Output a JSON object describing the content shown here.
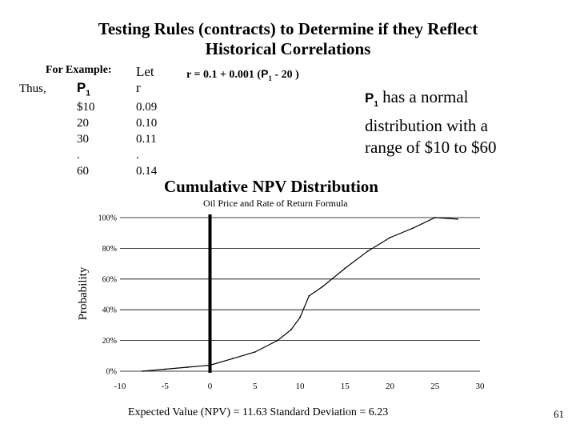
{
  "slide": {
    "title_line1": "Testing Rules (contracts) to Determine if they Reflect",
    "title_line2": "Historical Correlations",
    "for_example": "For Example:",
    "thus": "Thus,",
    "p1_symbol": "P",
    "p1_subscript": "1",
    "p1_values": [
      "$10",
      "20",
      "30",
      ".",
      "60"
    ],
    "let_label": "Let",
    "r_label": "r",
    "r_values": [
      "0.09",
      "0.10",
      "0.11",
      ".",
      "0.14"
    ],
    "formula_prefix": "r = 0.1 + 0.001 (",
    "formula_suffix": " - 20 )",
    "note_line1_suffix": " has a normal",
    "note_line2": "distribution with a",
    "note_line3": "range of $10 to $60",
    "page_number": "61"
  },
  "chart_data": {
    "type": "line",
    "title": "Cumulative NPV Distribution",
    "subtitle": "Oil Price and Rate of Return Formula",
    "ylabel": "Probability",
    "x_ticks": [
      "-10",
      "-5",
      "0",
      "5",
      "10",
      "15",
      "20",
      "25",
      "30"
    ],
    "y_ticks": [
      "0%",
      "20%",
      "40%",
      "60%",
      "80%",
      "100%"
    ],
    "xlim": [
      -10,
      30
    ],
    "ylim": [
      0,
      100
    ],
    "grid": true,
    "marker_line_x": 0,
    "series": [
      {
        "x": [
          -7.5,
          -5,
          -2.5,
          0,
          2.5,
          5,
          7.5,
          9,
          10,
          11,
          12.5,
          15,
          17.5,
          20,
          22.5,
          25,
          27.5
        ],
        "y": [
          0,
          1.3,
          2.6,
          3.9,
          8.2,
          12.5,
          20,
          27,
          35,
          49,
          55,
          67,
          78,
          87,
          93,
          100,
          99
        ]
      }
    ],
    "footer": "Expected Value (NPV) = 11.63   Standard Deviation = 6.23"
  }
}
